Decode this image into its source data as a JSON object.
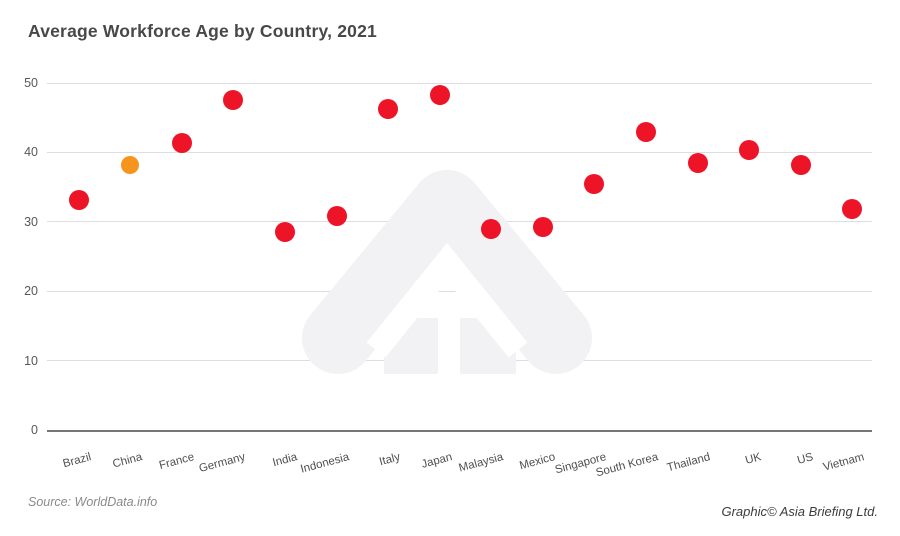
{
  "title": "Average Workforce Age by Country, 2021",
  "footer": {
    "source_label": "Source: WorldData.info",
    "credit_label": "Graphic© Asia Briefing Ltd."
  },
  "colors": {
    "point": "#ED1428",
    "highlight_point": "#F7941E",
    "gridline": "#DDDDDF",
    "axis_line": "#75757A",
    "title_text": "#48484A",
    "tick_text": "#58585A",
    "watermark": "#F2F2F5"
  },
  "chart_data": {
    "type": "scatter",
    "title": "Average Workforce Age by Country, 2021",
    "categories": [
      "Brazil",
      "China",
      "France",
      "Germany",
      "India",
      "Indonesia",
      "Italy",
      "Japan",
      "Malaysia",
      "Mexico",
      "Singapore",
      "South Korea",
      "Thailand",
      "UK",
      "US",
      "Vietnam"
    ],
    "values": [
      33.2,
      38.2,
      41.3,
      47.6,
      28.5,
      30.9,
      46.2,
      48.3,
      29.0,
      29.2,
      35.4,
      43.0,
      38.5,
      40.3,
      38.2,
      31.9
    ],
    "highlighted_category": "China",
    "xlabel": "",
    "ylabel": "",
    "ylim": [
      0,
      50
    ],
    "yticks": [
      0,
      10,
      20,
      30,
      40,
      50
    ],
    "grid": "horizontal",
    "legend": "none",
    "marker_px": 20,
    "highlight_marker_px": 18,
    "watermark": "asia-briefing-logo"
  }
}
